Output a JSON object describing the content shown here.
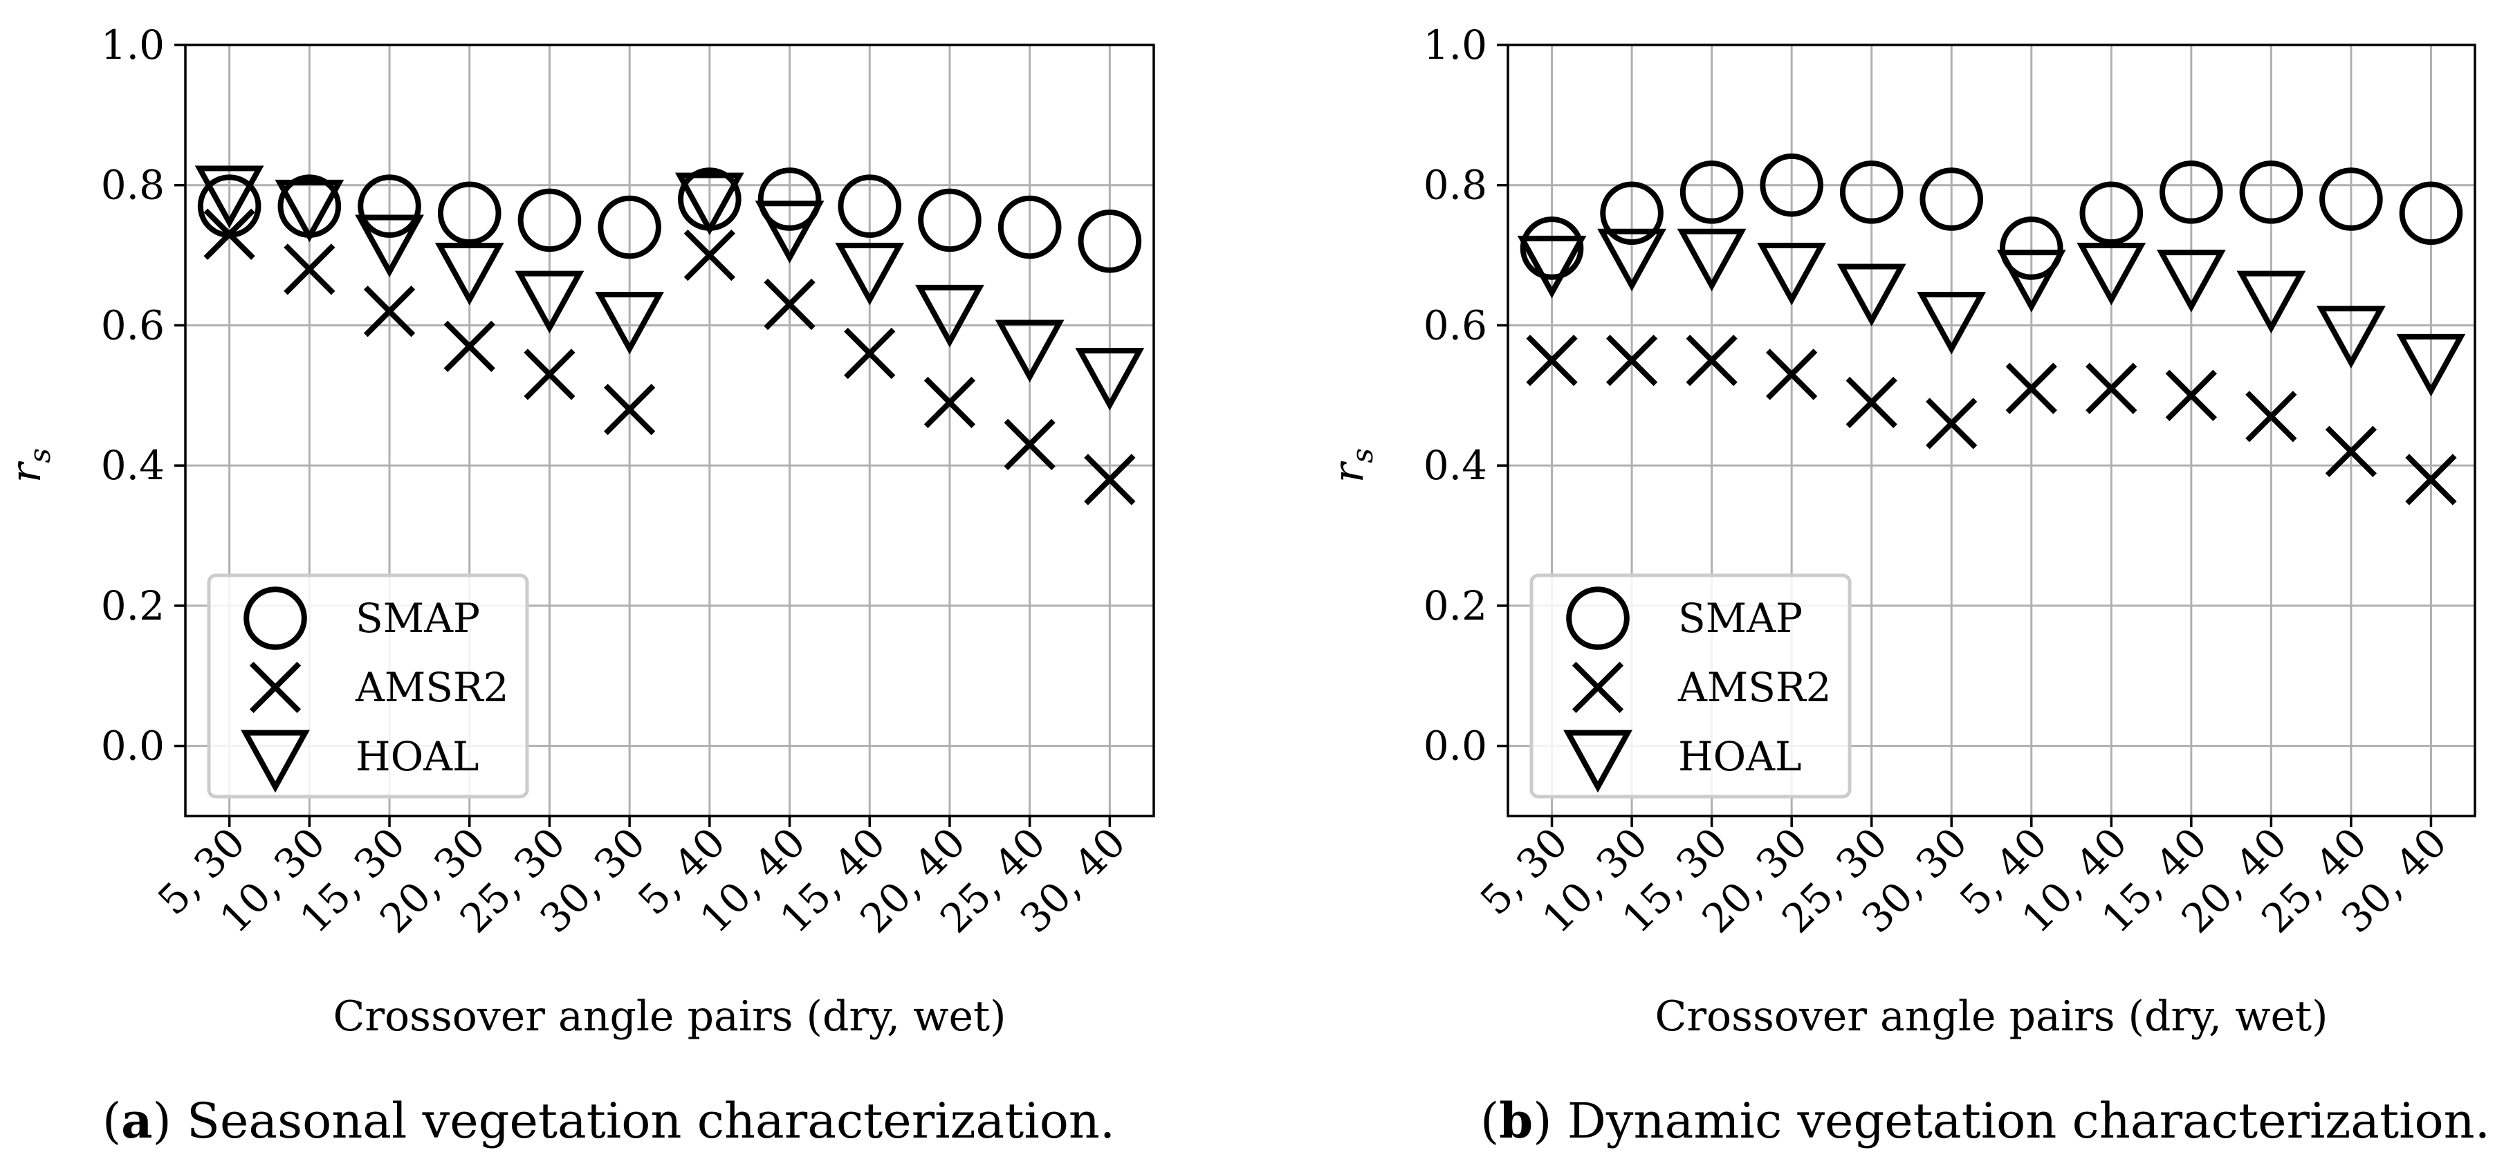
{
  "chart_data": [
    {
      "id": "a",
      "type": "scatter",
      "categories": [
        "5, 30",
        "10, 30",
        "15, 30",
        "20, 30",
        "25, 30",
        "30, 30",
        "5, 40",
        "10, 40",
        "15, 40",
        "20, 40",
        "25, 40",
        "30, 40"
      ],
      "series": [
        {
          "name": "SMAP",
          "marker": "circle",
          "values": [
            0.77,
            0.77,
            0.77,
            0.76,
            0.75,
            0.74,
            0.78,
            0.78,
            0.77,
            0.75,
            0.74,
            0.72
          ]
        },
        {
          "name": "AMSR2",
          "marker": "x",
          "values": [
            0.73,
            0.68,
            0.62,
            0.57,
            0.53,
            0.48,
            0.7,
            0.63,
            0.56,
            0.49,
            0.43,
            0.38
          ]
        },
        {
          "name": "HOAL",
          "marker": "triangle-down",
          "values": [
            0.79,
            0.77,
            0.72,
            0.68,
            0.64,
            0.61,
            0.78,
            0.74,
            0.68,
            0.62,
            0.57,
            0.53
          ]
        }
      ],
      "xlabel": "Crossover angle pairs (dry, wet)",
      "ylabel": "r",
      "ylabel_sub": "s",
      "ylim": [
        -0.1,
        1.0
      ],
      "yticks": [
        "0.0",
        "0.2",
        "0.4",
        "0.6",
        "0.8",
        "1.0"
      ],
      "grid": true,
      "legend_position": "lower-left",
      "caption_letter": "a",
      "caption_open": "(",
      "caption_close": ")",
      "caption_text": " Seasonal vegetation characterization."
    },
    {
      "id": "b",
      "type": "scatter",
      "categories": [
        "5, 30",
        "10, 30",
        "15, 30",
        "20, 30",
        "25, 30",
        "30, 30",
        "5, 40",
        "10, 40",
        "15, 40",
        "20, 40",
        "25, 40",
        "30, 40"
      ],
      "series": [
        {
          "name": "SMAP",
          "marker": "circle",
          "values": [
            0.71,
            0.76,
            0.79,
            0.8,
            0.79,
            0.78,
            0.71,
            0.76,
            0.79,
            0.79,
            0.78,
            0.76
          ]
        },
        {
          "name": "AMSR2",
          "marker": "x",
          "values": [
            0.55,
            0.55,
            0.55,
            0.53,
            0.49,
            0.46,
            0.51,
            0.51,
            0.5,
            0.47,
            0.42,
            0.38
          ]
        },
        {
          "name": "HOAL",
          "marker": "triangle-down",
          "values": [
            0.69,
            0.7,
            0.7,
            0.68,
            0.65,
            0.61,
            0.67,
            0.68,
            0.67,
            0.64,
            0.59,
            0.55
          ]
        }
      ],
      "xlabel": "Crossover angle pairs (dry, wet)",
      "ylabel": "r",
      "ylabel_sub": "s",
      "ylim": [
        -0.1,
        1.0
      ],
      "yticks": [
        "0.0",
        "0.2",
        "0.4",
        "0.6",
        "0.8",
        "1.0"
      ],
      "grid": true,
      "legend_position": "lower-left",
      "caption_letter": "b",
      "caption_open": "(",
      "caption_close": ")",
      "caption_text": " Dynamic vegetation characterization."
    }
  ],
  "colors": {
    "marker": "#000000",
    "grid": "#b0b0b0",
    "axes": "#000000",
    "legend_border": "#cccccc"
  }
}
